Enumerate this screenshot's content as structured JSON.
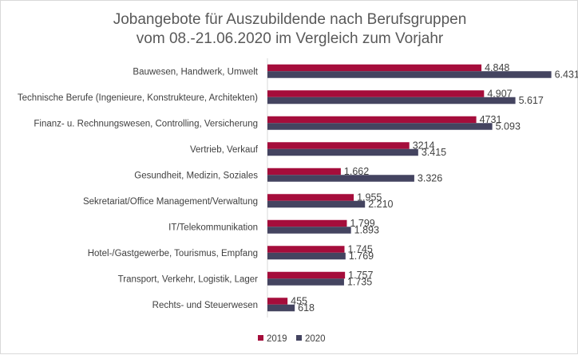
{
  "chart_data": {
    "type": "bar",
    "orientation": "horizontal",
    "title_lines": [
      "Jobangebote für Auszubildende nach Berufsgruppen",
      "vom 08.-21.06.2020 im Vergleich zum Vorjahr"
    ],
    "categories": [
      "Bauwesen, Handwerk, Umwelt",
      "Technische Berufe (Ingenieure, Konstrukteure, Architekten)",
      "Finanz- u. Rechnungswesen, Controlling, Versicherung",
      "Vertrieb, Verkauf",
      "Gesundheit, Medizin, Soziales",
      "Sekretariat/Office Management/Verwaltung",
      "IT/Telekommunikation",
      "Hotel-/Gastgewerbe, Tourismus, Empfang",
      "Transport, Verkehr, Logistik, Lager",
      "Rechts- und Steuerwesen"
    ],
    "series": [
      {
        "name": "2019",
        "color": "#a50d3b",
        "values": [
          4848,
          4907,
          4731,
          3214,
          1662,
          1955,
          1799,
          1745,
          1757,
          455
        ],
        "labels": [
          "4.848",
          "4.907",
          "4731",
          "3214",
          "1.662",
          "1.955",
          "1.799",
          "1.745",
          "1.757",
          "455"
        ]
      },
      {
        "name": "2020",
        "color": "#444460",
        "values": [
          6431,
          5617,
          5093,
          3415,
          3326,
          2210,
          1893,
          1769,
          1735,
          618
        ],
        "labels": [
          "6.431",
          "5.617",
          "5.093",
          "3.415",
          "3.326",
          "2.210",
          "1.893",
          "1.769",
          "1.735",
          "618"
        ]
      }
    ],
    "xlim": [
      0,
      6800
    ],
    "legend_position": "bottom-center",
    "grid": false
  }
}
